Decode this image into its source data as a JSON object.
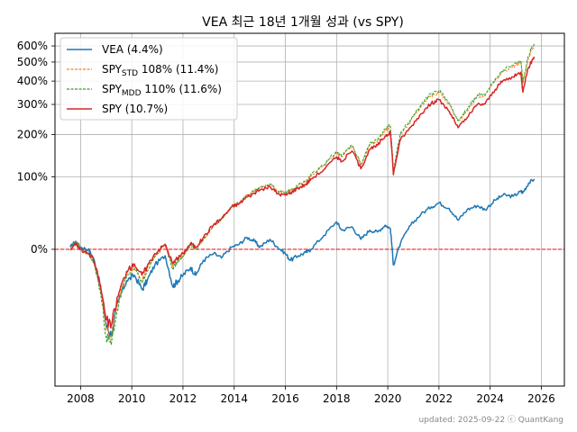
{
  "chart_data": {
    "type": "line",
    "title": "VEA 최근 18년 1개월 성과 (vs SPY)",
    "xlabel": "",
    "ylabel": "",
    "y_scale": "log(1+r)",
    "xlim": [
      2007.0,
      2026.9
    ],
    "ylim": [
      -0.73,
      6.9
    ],
    "x_ticks": [
      "2008",
      "2010",
      "2012",
      "2014",
      "2016",
      "2018",
      "2020",
      "2022",
      "2024",
      "2026"
    ],
    "y_ticks": [
      {
        "label": "0%",
        "value": 0
      },
      {
        "label": "100%",
        "value": 1
      },
      {
        "label": "200%",
        "value": 2
      },
      {
        "label": "300%",
        "value": 3
      },
      {
        "label": "400%",
        "value": 4
      },
      {
        "label": "500%",
        "value": 5
      },
      {
        "label": "600%",
        "value": 6
      }
    ],
    "grid": true,
    "reference_line": {
      "value": 0,
      "color": "#ff0000",
      "style": "dashed"
    },
    "legend": {
      "position": "top-left",
      "entries": [
        {
          "label": "VEA (4.4%)",
          "color": "#1f77b4",
          "style": "solid"
        },
        {
          "label_main": "SPY",
          "label_sub": "STD",
          "label_rest": " 108% (11.4%)",
          "color": "#ff7f0e",
          "style": "dashed"
        },
        {
          "label_main": "SPY",
          "label_sub": "MDD",
          "label_rest": " 110% (11.6%)",
          "color": "#2ca02c",
          "style": "dashed"
        },
        {
          "label": "SPY (10.7%)",
          "color": "#d62728",
          "style": "solid"
        }
      ]
    },
    "series": [
      {
        "name": "VEA (4.4%)",
        "color": "#1f77b4",
        "style": "solid",
        "x": [
          2007.6,
          2007.8,
          2008.0,
          2008.3,
          2008.5,
          2008.75,
          2009.0,
          2009.2,
          2009.5,
          2009.8,
          2010.1,
          2010.4,
          2010.6,
          2010.9,
          2011.3,
          2011.6,
          2011.8,
          2012.0,
          2012.3,
          2012.5,
          2012.8,
          2013.2,
          2013.5,
          2013.9,
          2014.2,
          2014.5,
          2014.8,
          2015.0,
          2015.4,
          2015.7,
          2016.0,
          2016.2,
          2016.5,
          2016.8,
          2017.0,
          2017.5,
          2018.0,
          2018.2,
          2018.6,
          2018.95,
          2019.3,
          2019.6,
          2019.9,
          2020.1,
          2020.22,
          2020.5,
          2020.9,
          2021.3,
          2021.7,
          2022.0,
          2022.4,
          2022.75,
          2023.1,
          2023.5,
          2023.8,
          2024.2,
          2024.5,
          2024.9,
          2025.2,
          2025.28,
          2025.5,
          2025.72
        ],
        "y": [
          0.02,
          0.08,
          0.02,
          0.0,
          -0.08,
          -0.28,
          -0.52,
          -0.56,
          -0.38,
          -0.26,
          -0.22,
          -0.32,
          -0.26,
          -0.14,
          -0.06,
          -0.3,
          -0.26,
          -0.22,
          -0.16,
          -0.22,
          -0.1,
          -0.04,
          -0.08,
          0.02,
          0.05,
          0.12,
          0.08,
          0.02,
          0.1,
          0.02,
          -0.04,
          -0.1,
          -0.06,
          -0.03,
          0.0,
          0.14,
          0.3,
          0.2,
          0.24,
          0.1,
          0.2,
          0.18,
          0.26,
          0.22,
          -0.14,
          0.06,
          0.26,
          0.4,
          0.5,
          0.56,
          0.48,
          0.32,
          0.46,
          0.52,
          0.46,
          0.6,
          0.68,
          0.66,
          0.74,
          0.72,
          0.88,
          0.96
        ]
      },
      {
        "name_main": "SPY",
        "name_sub": "STD",
        "name_rest": " 108% (11.4%)",
        "color": "#ff7f0e",
        "style": "dashed",
        "x": [
          2007.6,
          2007.8,
          2008.0,
          2008.3,
          2008.5,
          2008.75,
          2009.0,
          2009.2,
          2009.5,
          2009.8,
          2010.1,
          2010.4,
          2010.6,
          2010.9,
          2011.3,
          2011.6,
          2011.8,
          2012.0,
          2012.3,
          2012.5,
          2012.8,
          2013.2,
          2013.5,
          2013.9,
          2014.2,
          2014.5,
          2014.8,
          2015.0,
          2015.4,
          2015.7,
          2016.0,
          2016.2,
          2016.5,
          2016.8,
          2017.0,
          2017.5,
          2018.0,
          2018.2,
          2018.6,
          2018.95,
          2019.3,
          2019.6,
          2019.9,
          2020.1,
          2020.22,
          2020.5,
          2020.9,
          2021.3,
          2021.7,
          2022.0,
          2022.4,
          2022.75,
          2023.1,
          2023.5,
          2023.8,
          2024.2,
          2024.5,
          2024.9,
          2025.2,
          2025.28,
          2025.5,
          2025.72
        ],
        "y": [
          0.0,
          0.07,
          0.0,
          -0.04,
          -0.1,
          -0.3,
          -0.54,
          -0.57,
          -0.38,
          -0.22,
          -0.16,
          -0.26,
          -0.18,
          -0.06,
          0.04,
          -0.16,
          -0.1,
          -0.06,
          0.04,
          0.0,
          0.1,
          0.26,
          0.34,
          0.5,
          0.56,
          0.68,
          0.74,
          0.8,
          0.86,
          0.74,
          0.72,
          0.76,
          0.84,
          0.9,
          1.02,
          1.22,
          1.52,
          1.42,
          1.68,
          1.24,
          1.72,
          1.82,
          2.12,
          2.24,
          1.1,
          2.02,
          2.42,
          2.92,
          3.36,
          3.5,
          3.0,
          2.4,
          2.76,
          3.32,
          3.34,
          4.02,
          4.48,
          4.7,
          4.96,
          3.9,
          5.26,
          6.04
        ]
      },
      {
        "name_main": "SPY",
        "name_sub": "MDD",
        "name_rest": " 110% (11.6%)",
        "color": "#2ca02c",
        "style": "dashed",
        "x": [
          2007.6,
          2007.8,
          2008.0,
          2008.3,
          2008.5,
          2008.75,
          2009.0,
          2009.2,
          2009.5,
          2009.8,
          2010.1,
          2010.4,
          2010.6,
          2010.9,
          2011.3,
          2011.6,
          2011.8,
          2012.0,
          2012.3,
          2012.5,
          2012.8,
          2013.2,
          2013.5,
          2013.9,
          2014.2,
          2014.5,
          2014.8,
          2015.0,
          2015.4,
          2015.7,
          2016.0,
          2016.2,
          2016.5,
          2016.8,
          2017.0,
          2017.5,
          2018.0,
          2018.2,
          2018.6,
          2018.95,
          2019.3,
          2019.6,
          2019.9,
          2020.1,
          2020.22,
          2020.5,
          2020.9,
          2021.3,
          2021.7,
          2022.0,
          2022.4,
          2022.75,
          2023.1,
          2023.5,
          2023.8,
          2024.2,
          2024.5,
          2024.9,
          2025.2,
          2025.28,
          2025.5,
          2025.72
        ],
        "y": [
          0.0,
          0.07,
          0.0,
          -0.05,
          -0.11,
          -0.32,
          -0.57,
          -0.6,
          -0.4,
          -0.23,
          -0.17,
          -0.27,
          -0.19,
          -0.07,
          0.04,
          -0.17,
          -0.11,
          -0.07,
          0.04,
          0.0,
          0.1,
          0.26,
          0.34,
          0.5,
          0.57,
          0.69,
          0.75,
          0.81,
          0.87,
          0.74,
          0.72,
          0.76,
          0.85,
          0.91,
          1.03,
          1.24,
          1.55,
          1.44,
          1.71,
          1.25,
          1.75,
          1.85,
          2.16,
          2.28,
          1.1,
          2.05,
          2.46,
          2.98,
          3.44,
          3.58,
          3.05,
          2.42,
          2.8,
          3.38,
          3.4,
          4.1,
          4.58,
          4.8,
          5.08,
          3.96,
          5.4,
          6.18
        ]
      },
      {
        "name": "SPY (10.7%)",
        "color": "#d62728",
        "style": "solid",
        "x": [
          2007.6,
          2007.8,
          2008.0,
          2008.3,
          2008.5,
          2008.75,
          2009.0,
          2009.2,
          2009.5,
          2009.8,
          2010.1,
          2010.4,
          2010.6,
          2010.9,
          2011.3,
          2011.6,
          2011.8,
          2012.0,
          2012.3,
          2012.5,
          2012.8,
          2013.2,
          2013.5,
          2013.9,
          2014.2,
          2014.5,
          2014.8,
          2015.0,
          2015.4,
          2015.7,
          2016.0,
          2016.2,
          2016.5,
          2016.8,
          2017.0,
          2017.5,
          2018.0,
          2018.2,
          2018.6,
          2018.95,
          2019.3,
          2019.6,
          2019.9,
          2020.1,
          2020.22,
          2020.5,
          2020.9,
          2021.3,
          2021.7,
          2022.0,
          2022.4,
          2022.75,
          2023.1,
          2023.5,
          2023.8,
          2024.2,
          2024.5,
          2024.9,
          2025.2,
          2025.28,
          2025.5,
          2025.72
        ],
        "y": [
          0.0,
          0.06,
          0.0,
          -0.04,
          -0.09,
          -0.28,
          -0.49,
          -0.52,
          -0.34,
          -0.19,
          -0.13,
          -0.22,
          -0.15,
          -0.04,
          0.05,
          -0.13,
          -0.08,
          -0.04,
          0.06,
          0.02,
          0.12,
          0.27,
          0.34,
          0.5,
          0.55,
          0.65,
          0.71,
          0.76,
          0.82,
          0.7,
          0.68,
          0.72,
          0.8,
          0.86,
          0.96,
          1.14,
          1.42,
          1.32,
          1.56,
          1.16,
          1.6,
          1.7,
          1.96,
          2.06,
          1.04,
          1.86,
          2.22,
          2.66,
          3.04,
          3.18,
          2.74,
          2.2,
          2.52,
          3.0,
          3.02,
          3.62,
          4.02,
          4.2,
          4.44,
          3.5,
          4.7,
          5.32
        ]
      }
    ]
  },
  "footer": "updated: 2025-09-22 ⓒ QuantKang"
}
